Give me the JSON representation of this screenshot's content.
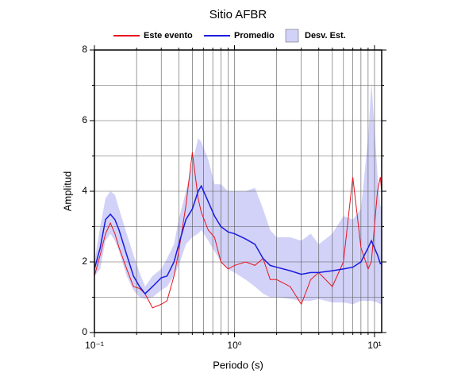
{
  "chart_data": {
    "type": "line",
    "title": "Sitio AFBR",
    "xlabel": "Periodo (s)",
    "ylabel": "Amplitud",
    "xscale": "log",
    "xlim": [
      0.1,
      11.25
    ],
    "ylim": [
      0,
      8
    ],
    "xticks": [
      {
        "value": 0.1,
        "label": "10⁻¹"
      },
      {
        "value": 1,
        "label": "10⁰"
      },
      {
        "value": 10,
        "label": "10¹"
      }
    ],
    "xminorticks": [
      0.2,
      0.3,
      0.4,
      0.5,
      0.6,
      0.7,
      0.8,
      0.9,
      2,
      3,
      4,
      5,
      6,
      7,
      8,
      9
    ],
    "yticks": [
      0,
      2,
      4,
      6,
      8
    ],
    "yminorticks": [
      1,
      3,
      5,
      7
    ],
    "grid": true,
    "legend": "top",
    "x": [
      0.1,
      0.11,
      0.12,
      0.13,
      0.14,
      0.15,
      0.17,
      0.19,
      0.21,
      0.23,
      0.26,
      0.3,
      0.33,
      0.37,
      0.4,
      0.45,
      0.5,
      0.55,
      0.58,
      0.65,
      0.72,
      0.8,
      0.9,
      1.0,
      1.2,
      1.4,
      1.6,
      1.8,
      2.0,
      2.5,
      3.0,
      3.5,
      4.0,
      5.0,
      6.0,
      7.0,
      8.0,
      9.0,
      9.5,
      10.5,
      11,
      11.25
    ],
    "series": [
      {
        "name": "Este evento",
        "color": "#e8141e",
        "values": [
          1.6,
          2.2,
          2.8,
          3.1,
          2.8,
          2.4,
          1.8,
          1.3,
          1.25,
          1.1,
          0.7,
          0.8,
          0.9,
          1.6,
          2.3,
          3.6,
          5.1,
          3.8,
          3.4,
          2.9,
          2.7,
          2.0,
          1.8,
          1.9,
          2.0,
          1.9,
          2.1,
          1.5,
          1.5,
          1.3,
          0.8,
          1.5,
          1.7,
          1.3,
          2.0,
          4.4,
          2.4,
          1.8,
          2.0,
          4.0,
          4.4,
          4.0
        ]
      },
      {
        "name": "Promedio",
        "color": "#1a1ae0",
        "values": [
          1.8,
          2.4,
          3.2,
          3.35,
          3.2,
          2.9,
          2.2,
          1.6,
          1.3,
          1.1,
          1.3,
          1.55,
          1.6,
          2.0,
          2.5,
          3.2,
          3.5,
          4.0,
          4.15,
          3.7,
          3.3,
          3.0,
          2.85,
          2.8,
          2.65,
          2.5,
          2.1,
          1.9,
          1.85,
          1.75,
          1.65,
          1.7,
          1.7,
          1.75,
          1.8,
          1.85,
          2.0,
          2.4,
          2.6,
          2.2,
          1.95,
          1.95
        ]
      },
      {
        "name": "Desv. Est.",
        "color": "#d2d2f8",
        "upper": [
          2.0,
          3.0,
          3.8,
          4.0,
          3.9,
          3.5,
          2.8,
          2.2,
          1.7,
          1.3,
          1.6,
          1.8,
          2.1,
          2.5,
          3.2,
          4.0,
          4.8,
          5.5,
          5.4,
          4.9,
          4.2,
          4.2,
          4.0,
          4.0,
          4.0,
          4.1,
          3.5,
          2.9,
          2.7,
          2.7,
          2.6,
          2.8,
          2.5,
          2.8,
          3.3,
          3.2,
          3.5,
          5.5,
          7.1,
          4.5,
          3.6,
          3.5
        ],
        "lower": [
          1.6,
          1.8,
          2.6,
          2.8,
          2.6,
          2.3,
          1.6,
          1.2,
          1.0,
          0.95,
          1.0,
          1.2,
          1.3,
          1.6,
          1.9,
          2.5,
          2.7,
          2.8,
          2.9,
          2.6,
          2.3,
          2.0,
          1.8,
          1.7,
          1.5,
          1.3,
          1.1,
          1.0,
          1.0,
          0.95,
          0.9,
          0.9,
          0.95,
          0.85,
          0.85,
          0.8,
          0.9,
          0.9,
          0.9,
          0.85,
          0.8,
          0.8
        ]
      }
    ]
  }
}
